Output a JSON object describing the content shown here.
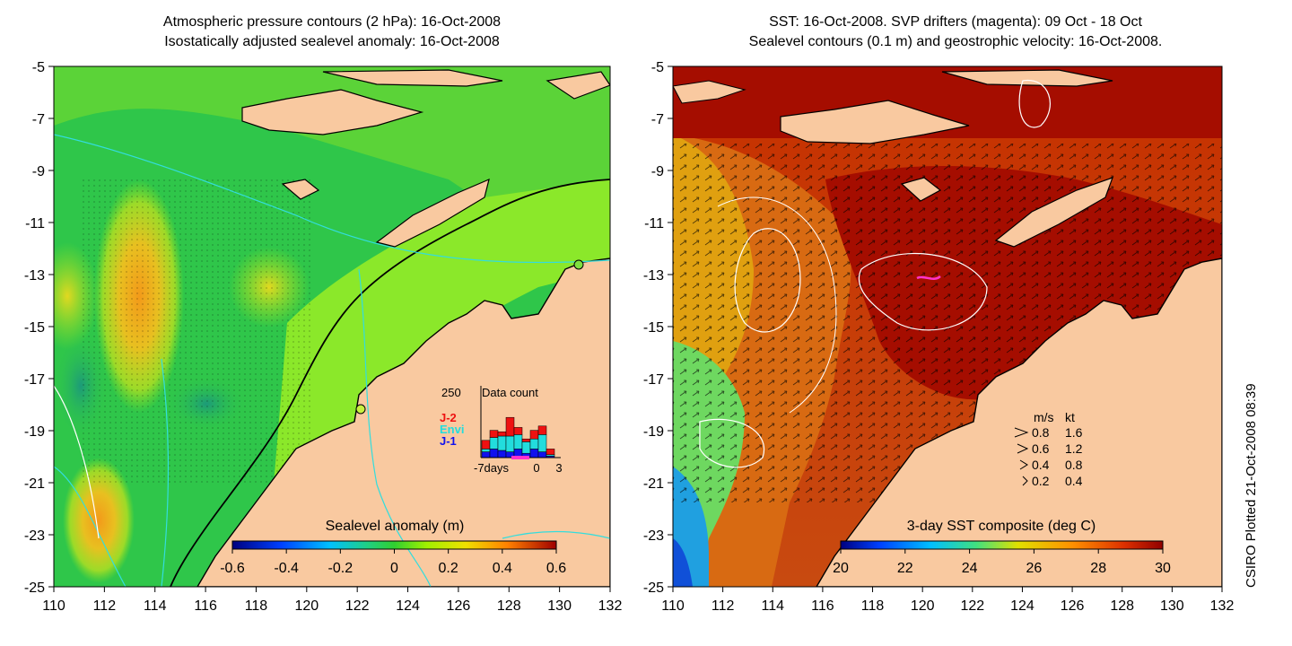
{
  "left_panel": {
    "title_line1": "Atmospheric pressure contours (2 hPa): 16-Oct-2008",
    "title_line2": "Isostatically adjusted sealevel anomaly: 16-Oct-2008",
    "colorbar_label": "Sealevel anomaly (m)",
    "colorbar_ticks": [
      "-0.6",
      "-0.4",
      "-0.2",
      "0",
      "0.2",
      "0.4",
      "0.6"
    ],
    "inset": {
      "title": "Data count",
      "ymax_label": "250",
      "legend": [
        {
          "label": "J-2",
          "color": "#ee1111"
        },
        {
          "label": "Envi",
          "color": "#22dddd"
        },
        {
          "label": "J-1",
          "color": "#1111ee"
        }
      ],
      "xlabels": [
        "-7days",
        "0",
        "3"
      ],
      "bars": [
        {
          "j1": 20,
          "envi": 10,
          "j2": 30
        },
        {
          "j1": 30,
          "envi": 40,
          "j2": 25
        },
        {
          "j1": 25,
          "envi": 50,
          "j2": 15
        },
        {
          "j1": 20,
          "envi": 55,
          "j2": 65
        },
        {
          "j1": 30,
          "envi": 50,
          "j2": 25
        },
        {
          "j1": 15,
          "envi": 40,
          "j2": 10
        },
        {
          "j1": 30,
          "envi": 35,
          "j2": 30
        },
        {
          "j1": 20,
          "envi": 60,
          "j2": 30
        },
        {
          "j1": 5,
          "envi": 5,
          "j2": 20
        }
      ]
    }
  },
  "right_panel": {
    "title_line1": "SST: 16-Oct-2008. SVP drifters (magenta): 09 Oct - 18 Oct",
    "title_line2": "Sealevel contours (0.1 m) and geostrophic velocity: 16-Oct-2008.",
    "colorbar_label": "3-day SST composite (deg C)",
    "colorbar_ticks": [
      "20",
      "22",
      "24",
      "26",
      "28",
      "30"
    ],
    "velocity_legend": {
      "header_ms": "m/s",
      "header_kt": "kt",
      "rows": [
        {
          "ms": "0.8",
          "kt": "1.6"
        },
        {
          "ms": "0.6",
          "kt": "1.2"
        },
        {
          "ms": "0.4",
          "kt": "0.8"
        },
        {
          "ms": "0.2",
          "kt": "0.4"
        }
      ]
    }
  },
  "y_ticks": [
    "-5",
    "-7",
    "-9",
    "-11",
    "-13",
    "-15",
    "-17",
    "-19",
    "-21",
    "-23",
    "-25"
  ],
  "x_ticks": [
    "110",
    "112",
    "114",
    "116",
    "118",
    "120",
    "122",
    "124",
    "126",
    "128",
    "130",
    "132"
  ],
  "credit": "CSIRO Plotted 21-Oct-2008 08:39",
  "colors": {
    "land": "#f9c9a0",
    "ocean_green": "#3fd33f",
    "sst_red": "#b81800",
    "drifter": "#ff33cc",
    "contour_cyan": "#33dddd"
  }
}
